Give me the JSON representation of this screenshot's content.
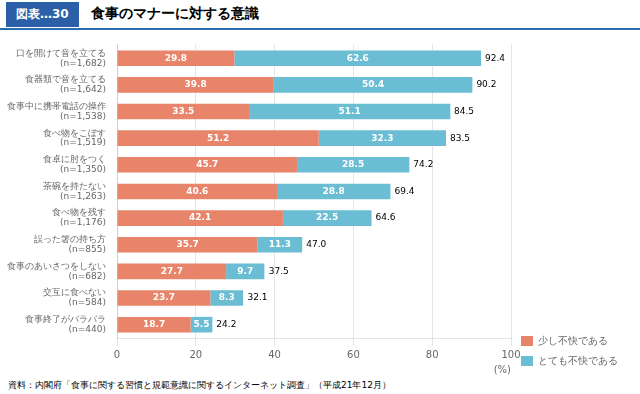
{
  "chart_data": {
    "type": "bar",
    "orientation": "horizontal",
    "stacked": true,
    "title": "食事のマナーに対する意識",
    "annotations": [
      "図表…30",
      "資料：内閣府「食事に関する習慣と規範意識に関するインターネット調査」（平成21年12月）"
    ],
    "xlabel": "(%)",
    "categories": [
      "口を開けて音を立てる\n(n=1,682)",
      "食器類で音を立てる\n(n=1,642)",
      "食事中に携帯電話の操作\n(n=1,538)",
      "食べ物をこぼす\n(n=1,519)",
      "食卓に肘をつく\n(n=1,350)",
      "茶碗を持たない\n(n=1,263)",
      "食べ物を残す\n(n=1,176)",
      "誤った箸の持ち方\n(n=855)",
      "食事のあいさつをしない\n(n=682)",
      "交互に食べない\n(n=584)",
      "食事終了がバラバラ\n(n=440)"
    ],
    "series": [
      {
        "name": "少し不快である",
        "color": "#E8846A",
        "values": [
          29.8,
          39.8,
          33.5,
          51.2,
          45.7,
          40.6,
          42.1,
          35.7,
          27.7,
          23.7,
          18.7
        ]
      },
      {
        "name": "とても不快である",
        "color": "#6BBDD4",
        "values": [
          62.6,
          50.4,
          51.1,
          32.3,
          28.5,
          28.8,
          22.5,
          11.3,
          9.7,
          8.3,
          5.5
        ]
      }
    ],
    "totals": [
      92.4,
      90.2,
      84.5,
      83.5,
      74.2,
      69.4,
      64.6,
      47.0,
      37.5,
      32.1,
      24.2
    ],
    "total_labels": [
      "92.4",
      "90.2",
      "84.5",
      "83.5",
      "74.2",
      "69.4",
      "64.6",
      "47.0",
      "37.5",
      "32.1",
      "24.2"
    ],
    "xlim": [
      0,
      100
    ],
    "xticks": [
      0,
      20,
      40,
      60,
      80,
      100
    ],
    "grid": true,
    "legend": "lower right",
    "data_labels": true
  }
}
